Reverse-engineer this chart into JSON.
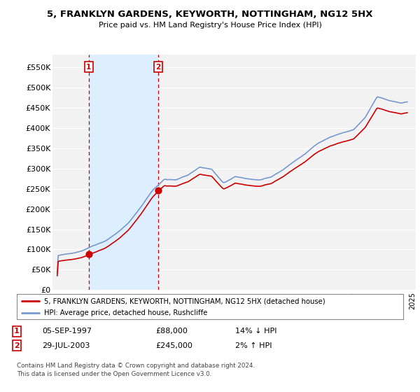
{
  "title": "5, FRANKLYN GARDENS, KEYWORTH, NOTTINGHAM, NG12 5HX",
  "subtitle": "Price paid vs. HM Land Registry's House Price Index (HPI)",
  "legend_line1": "5, FRANKLYN GARDENS, KEYWORTH, NOTTINGHAM, NG12 5HX (detached house)",
  "legend_line2": "HPI: Average price, detached house, Rushcliffe",
  "sale1_date": "05-SEP-1997",
  "sale1_price": 88000,
  "sale2_date": "29-JUL-2003",
  "sale2_price": 245000,
  "sale1_hpi": "14% ↓ HPI",
  "sale2_hpi": "2% ↑ HPI",
  "footnote1": "Contains HM Land Registry data © Crown copyright and database right 2024.",
  "footnote2": "This data is licensed under the Open Government Licence v3.0.",
  "hpi_color": "#7799cc",
  "price_color": "#cc0000",
  "shade_color": "#ddeeff",
  "background_color": "#ffffff",
  "plot_bg_color": "#f2f2f2",
  "grid_color": "#ffffff",
  "yticks": [
    0,
    50000,
    100000,
    150000,
    200000,
    250000,
    300000,
    350000,
    400000,
    450000,
    500000,
    550000
  ],
  "ylim": [
    0,
    580000
  ],
  "sale1_year": 1997.667,
  "sale2_year": 2003.542
}
